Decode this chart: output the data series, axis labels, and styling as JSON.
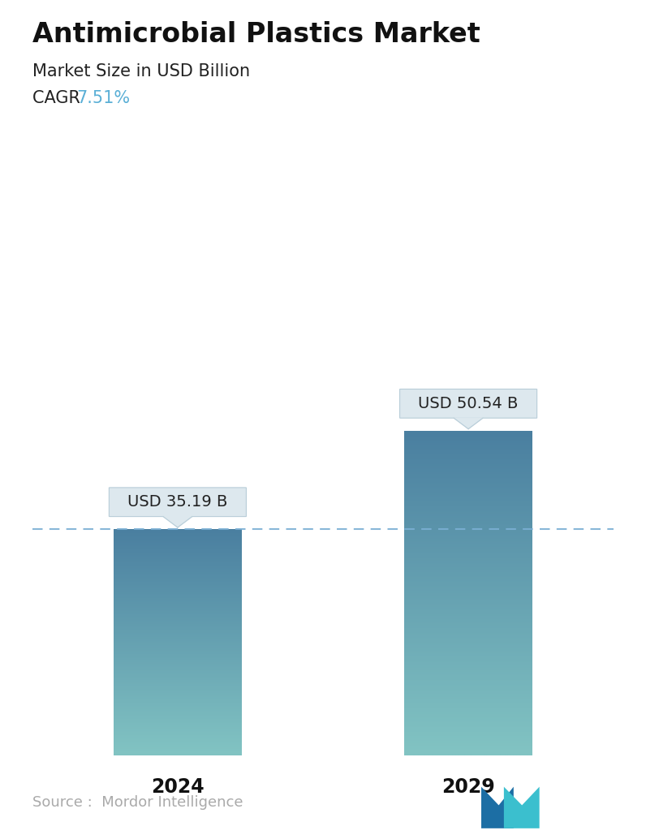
{
  "title": "Antimicrobial Plastics Market",
  "subtitle": "Market Size in USD Billion",
  "cagr_label": "CAGR ",
  "cagr_value": "7.51%",
  "cagr_color": "#5AAFD6",
  "categories": [
    "2024",
    "2029"
  ],
  "values": [
    35.19,
    50.54
  ],
  "labels": [
    "USD 35.19 B",
    "USD 50.54 B"
  ],
  "bar_top_color": "#4A7FA0",
  "bar_bottom_color": "#82C4C3",
  "dashed_line_color": "#7BAFD4",
  "source_text": "Source :  Mordor Intelligence",
  "source_color": "#AAAAAA",
  "background_color": "#ffffff",
  "title_fontsize": 24,
  "subtitle_fontsize": 15,
  "cagr_fontsize": 15,
  "tick_fontsize": 17,
  "label_fontsize": 14,
  "source_fontsize": 13,
  "ylim": [
    0,
    68
  ],
  "bar_positions": [
    0.25,
    0.75
  ],
  "bar_width": 0.22
}
